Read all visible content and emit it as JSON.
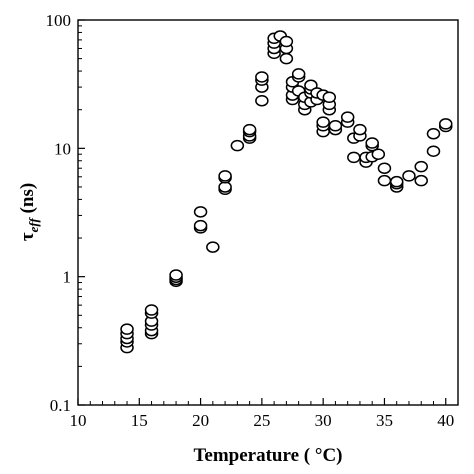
{
  "chart_data": {
    "type": "scatter",
    "xlabel": "Temperature  ( °C)",
    "ylabel_symbol": "τ",
    "ylabel_subscript": "eff",
    "ylabel_unit": " (ns)",
    "xlim": [
      10,
      41
    ],
    "ylim": [
      0.1,
      100
    ],
    "yscale": "log",
    "grid": false,
    "x_ticks": [
      10,
      15,
      20,
      25,
      30,
      35,
      40
    ],
    "x_tick_labels": [
      "10",
      "15",
      "20",
      "25",
      "30",
      "35",
      "40"
    ],
    "y_ticks": [
      0.1,
      1,
      10,
      100
    ],
    "y_tick_labels": [
      "0.1",
      "1",
      "10",
      "100"
    ],
    "marker": "open-circle",
    "marker_color": "#000000",
    "points": [
      {
        "x": 14,
        "y": 0.28
      },
      {
        "x": 14,
        "y": 0.31
      },
      {
        "x": 14,
        "y": 0.33
      },
      {
        "x": 14,
        "y": 0.36
      },
      {
        "x": 14,
        "y": 0.39
      },
      {
        "x": 16,
        "y": 0.36
      },
      {
        "x": 16,
        "y": 0.38
      },
      {
        "x": 16,
        "y": 0.42
      },
      {
        "x": 16,
        "y": 0.45
      },
      {
        "x": 16,
        "y": 0.52
      },
      {
        "x": 16,
        "y": 0.55
      },
      {
        "x": 18,
        "y": 0.92
      },
      {
        "x": 18,
        "y": 0.95
      },
      {
        "x": 18,
        "y": 0.99
      },
      {
        "x": 18,
        "y": 1.03
      },
      {
        "x": 20,
        "y": 2.4
      },
      {
        "x": 20,
        "y": 2.5
      },
      {
        "x": 20,
        "y": 3.2
      },
      {
        "x": 21,
        "y": 1.7
      },
      {
        "x": 22,
        "y": 4.8
      },
      {
        "x": 22,
        "y": 5.0
      },
      {
        "x": 22,
        "y": 5.9
      },
      {
        "x": 22,
        "y": 6.1
      },
      {
        "x": 23,
        "y": 10.5
      },
      {
        "x": 24,
        "y": 12
      },
      {
        "x": 24,
        "y": 12.5
      },
      {
        "x": 24,
        "y": 13.5
      },
      {
        "x": 24,
        "y": 14
      },
      {
        "x": 25,
        "y": 23.5
      },
      {
        "x": 25,
        "y": 30
      },
      {
        "x": 25,
        "y": 34
      },
      {
        "x": 25,
        "y": 36
      },
      {
        "x": 26,
        "y": 55
      },
      {
        "x": 26,
        "y": 60
      },
      {
        "x": 26,
        "y": 66
      },
      {
        "x": 26,
        "y": 72
      },
      {
        "x": 26.5,
        "y": 75
      },
      {
        "x": 27,
        "y": 50
      },
      {
        "x": 27,
        "y": 60
      },
      {
        "x": 27,
        "y": 68
      },
      {
        "x": 27.5,
        "y": 24
      },
      {
        "x": 27.5,
        "y": 26
      },
      {
        "x": 27.5,
        "y": 30
      },
      {
        "x": 27.5,
        "y": 33
      },
      {
        "x": 28,
        "y": 28
      },
      {
        "x": 28,
        "y": 36
      },
      {
        "x": 28,
        "y": 38
      },
      {
        "x": 28.5,
        "y": 20
      },
      {
        "x": 28.5,
        "y": 22
      },
      {
        "x": 28.5,
        "y": 25
      },
      {
        "x": 29,
        "y": 23
      },
      {
        "x": 29,
        "y": 27
      },
      {
        "x": 29,
        "y": 29
      },
      {
        "x": 29,
        "y": 31
      },
      {
        "x": 29.5,
        "y": 24
      },
      {
        "x": 29.5,
        "y": 27
      },
      {
        "x": 30,
        "y": 13.5
      },
      {
        "x": 30,
        "y": 15
      },
      {
        "x": 30,
        "y": 16
      },
      {
        "x": 30,
        "y": 26
      },
      {
        "x": 30.5,
        "y": 20
      },
      {
        "x": 30.5,
        "y": 22
      },
      {
        "x": 30.5,
        "y": 25
      },
      {
        "x": 31,
        "y": 14
      },
      {
        "x": 31,
        "y": 15
      },
      {
        "x": 32,
        "y": 16
      },
      {
        "x": 32,
        "y": 17.5
      },
      {
        "x": 32.5,
        "y": 8.5
      },
      {
        "x": 32.5,
        "y": 12
      },
      {
        "x": 33,
        "y": 12.5
      },
      {
        "x": 33,
        "y": 14
      },
      {
        "x": 33.5,
        "y": 7.8
      },
      {
        "x": 33.5,
        "y": 8.5
      },
      {
        "x": 34,
        "y": 8.6
      },
      {
        "x": 34,
        "y": 10.5
      },
      {
        "x": 34,
        "y": 11
      },
      {
        "x": 34.5,
        "y": 9
      },
      {
        "x": 35,
        "y": 5.6
      },
      {
        "x": 35,
        "y": 7
      },
      {
        "x": 36,
        "y": 5
      },
      {
        "x": 36,
        "y": 5.3
      },
      {
        "x": 36,
        "y": 5.5
      },
      {
        "x": 37,
        "y": 6.1
      },
      {
        "x": 38,
        "y": 5.6
      },
      {
        "x": 38,
        "y": 7.2
      },
      {
        "x": 39,
        "y": 9.5
      },
      {
        "x": 39,
        "y": 13
      },
      {
        "x": 40,
        "y": 14.8
      },
      {
        "x": 40,
        "y": 15.5
      }
    ]
  }
}
